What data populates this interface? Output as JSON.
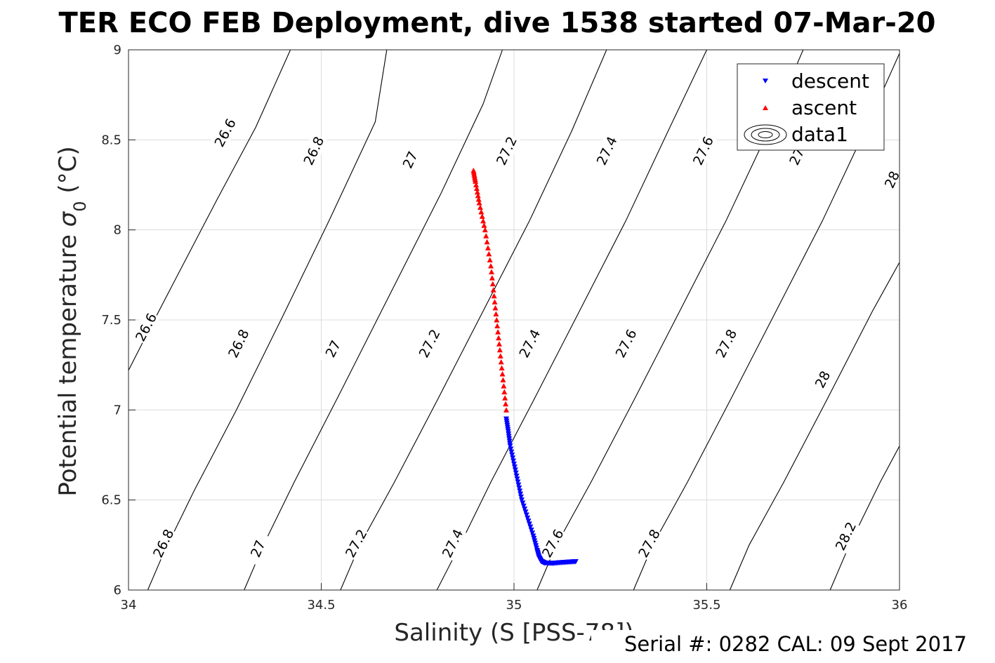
{
  "chart_data": {
    "type": "scatter",
    "title": "TER ECO FEB Deployment, dive 1538 started 07-Mar-20",
    "xlabel": "Salinity (S [PSS-78])",
    "ylabel": "Potential temperature σ₀ (°C)",
    "ylabel_main": "Potential temperature ",
    "ylabel_sigma": "σ",
    "ylabel_sub": "0",
    "ylabel_unit": " (°C)",
    "xlim": [
      34,
      36
    ],
    "ylim": [
      6,
      9
    ],
    "xticks": [
      "34",
      "34.5",
      "35",
      "35.5",
      "36"
    ],
    "yticks": [
      "6",
      "6.5",
      "7",
      "7.5",
      "8",
      "8.5",
      "9"
    ],
    "grid": true,
    "legend_position": "top-right",
    "legend": [
      "descent",
      "ascent",
      "data1"
    ],
    "colors": {
      "descent": "#0000ff",
      "ascent": "#ff0000",
      "contour": "#000000",
      "grid": "#dcdcdc"
    },
    "series": [
      {
        "name": "descent",
        "marker": "triangle-down",
        "points": [
          [
            34.98,
            6.95
          ],
          [
            34.985,
            6.88
          ],
          [
            34.99,
            6.8
          ],
          [
            35.0,
            6.7
          ],
          [
            35.01,
            6.6
          ],
          [
            35.02,
            6.5
          ],
          [
            35.035,
            6.4
          ],
          [
            35.05,
            6.3
          ],
          [
            35.06,
            6.22
          ],
          [
            35.065,
            6.18
          ],
          [
            35.07,
            6.16
          ],
          [
            35.08,
            6.15
          ],
          [
            35.1,
            6.148
          ],
          [
            35.12,
            6.152
          ],
          [
            35.14,
            6.155
          ],
          [
            35.16,
            6.158
          ]
        ]
      },
      {
        "name": "ascent",
        "marker": "triangle-up",
        "points": [
          [
            34.98,
            7.0
          ],
          [
            34.97,
            7.2
          ],
          [
            34.96,
            7.4
          ],
          [
            34.95,
            7.6
          ],
          [
            34.94,
            7.8
          ],
          [
            34.925,
            8.0
          ],
          [
            34.91,
            8.15
          ],
          [
            34.9,
            8.27
          ],
          [
            34.895,
            8.33
          ]
        ]
      }
    ],
    "contours": [
      {
        "level": "26.6",
        "points": [
          [
            34.0,
            7.22
          ],
          [
            34.05,
            7.43
          ],
          [
            34.13,
            7.76
          ],
          [
            34.23,
            8.17
          ],
          [
            34.33,
            8.57
          ],
          [
            34.42,
            9.0
          ]
        ],
        "labels": [
          [
            34.045,
            7.46
          ],
          [
            34.25,
            8.54
          ]
        ]
      },
      {
        "level": "26.8",
        "points": [
          [
            34.05,
            6.0
          ],
          [
            34.09,
            6.2
          ],
          [
            34.17,
            6.55
          ],
          [
            34.28,
            7.0
          ],
          [
            34.4,
            7.52
          ],
          [
            34.52,
            8.05
          ],
          [
            34.64,
            8.6
          ],
          [
            34.67,
            9.0
          ]
        ],
        "labels": [
          [
            34.09,
            6.26
          ],
          [
            34.285,
            7.37
          ],
          [
            34.48,
            8.44
          ]
        ]
      },
      {
        "level": "27",
        "points": [
          [
            34.3,
            6.0
          ],
          [
            34.35,
            6.25
          ],
          [
            34.43,
            6.6
          ],
          [
            34.55,
            7.1
          ],
          [
            34.68,
            7.65
          ],
          [
            34.81,
            8.2
          ],
          [
            34.92,
            8.7
          ],
          [
            34.97,
            9.0
          ]
        ],
        "labels": [
          [
            34.335,
            6.23
          ],
          [
            34.53,
            7.34
          ],
          [
            34.73,
            8.39
          ]
        ]
      },
      {
        "level": "27.2",
        "points": [
          [
            34.55,
            6.0
          ],
          [
            34.6,
            6.25
          ],
          [
            34.69,
            6.6
          ],
          [
            34.8,
            7.05
          ],
          [
            34.92,
            7.55
          ],
          [
            35.04,
            8.05
          ],
          [
            35.15,
            8.55
          ],
          [
            35.24,
            9.0
          ]
        ],
        "labels": [
          [
            34.59,
            6.26
          ],
          [
            34.78,
            7.37
          ],
          [
            34.98,
            8.44
          ]
        ]
      },
      {
        "level": "27.4",
        "points": [
          [
            34.8,
            6.0
          ],
          [
            34.86,
            6.25
          ],
          [
            34.94,
            6.6
          ],
          [
            35.05,
            7.05
          ],
          [
            35.17,
            7.55
          ],
          [
            35.29,
            8.05
          ],
          [
            35.4,
            8.55
          ],
          [
            35.5,
            9.0
          ]
        ],
        "labels": [
          [
            34.84,
            6.26
          ],
          [
            35.04,
            7.37
          ],
          [
            35.24,
            8.44
          ]
        ]
      },
      {
        "level": "27.6",
        "points": [
          [
            35.06,
            6.0
          ],
          [
            35.11,
            6.25
          ],
          [
            35.2,
            6.6
          ],
          [
            35.31,
            7.05
          ],
          [
            35.43,
            7.55
          ],
          [
            35.55,
            8.05
          ],
          [
            35.66,
            8.55
          ],
          [
            35.75,
            9.0
          ]
        ],
        "labels": [
          [
            35.1,
            6.26
          ],
          [
            35.29,
            7.37
          ],
          [
            35.49,
            8.44
          ]
        ]
      },
      {
        "level": "27.8",
        "points": [
          [
            35.31,
            6.0
          ],
          [
            35.36,
            6.25
          ],
          [
            35.45,
            6.6
          ],
          [
            35.56,
            7.05
          ],
          [
            35.68,
            7.55
          ],
          [
            35.8,
            8.05
          ],
          [
            35.91,
            8.55
          ],
          [
            36.0,
            8.98
          ]
        ],
        "labels": [
          [
            35.35,
            6.26
          ],
          [
            35.55,
            7.37
          ],
          [
            35.74,
            8.44
          ]
        ]
      },
      {
        "level": "28",
        "points": [
          [
            35.56,
            6.0
          ],
          [
            35.61,
            6.25
          ],
          [
            35.7,
            6.6
          ],
          [
            35.81,
            7.05
          ],
          [
            35.93,
            7.55
          ],
          [
            36.0,
            7.82
          ]
        ],
        "labels": [
          [
            35.8,
            7.17
          ],
          [
            35.98,
            8.28
          ]
        ]
      },
      {
        "level": "28.2",
        "points": [
          [
            35.82,
            6.0
          ],
          [
            35.87,
            6.25
          ],
          [
            35.95,
            6.6
          ],
          [
            36.0,
            6.8
          ]
        ],
        "labels": [
          [
            35.86,
            6.3
          ]
        ]
      }
    ],
    "footer": "Serial #: 0282  CAL: 09 Sept 2017"
  }
}
